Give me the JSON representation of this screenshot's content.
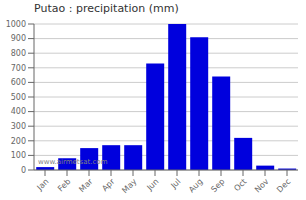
{
  "chart_data": {
    "type": "bar",
    "title": "Putao : precipitation (mm)",
    "categories": [
      "Jan",
      "Feb",
      "Mar",
      "Apr",
      "May",
      "Jun",
      "Jul",
      "Aug",
      "Sep",
      "Oct",
      "Nov",
      "Dec"
    ],
    "values": [
      20,
      80,
      150,
      170,
      170,
      730,
      1000,
      910,
      640,
      220,
      30,
      10
    ],
    "color": "#0000dd",
    "ylim": [
      0,
      1000
    ],
    "yticks": [
      0,
      100,
      200,
      300,
      400,
      500,
      600,
      700,
      800,
      900,
      1000
    ],
    "grid": true,
    "annotations": [
      "www.airmetsat.com"
    ]
  }
}
